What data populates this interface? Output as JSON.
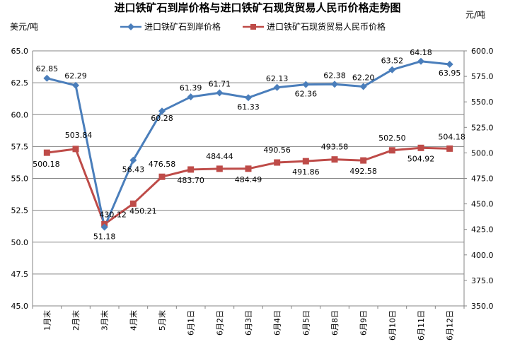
{
  "chart_data": {
    "type": "line",
    "title": "进口铁矿石到岸价格与进口铁矿石现货贸易人民币价格走势图",
    "ylabel_left": "美元/吨",
    "ylabel_right": "元/吨",
    "categories": [
      "1月末",
      "2月末",
      "3月末",
      "4月末",
      "5月末",
      "6月1日",
      "6月2日",
      "6月3日",
      "6月4日",
      "6月5日",
      "6月8日",
      "6月9日",
      "6月10日",
      "6月11日",
      "6月12日"
    ],
    "ylim_left": [
      45,
      65
    ],
    "yticks_left": [
      "45.0",
      "47.5",
      "50.0",
      "52.5",
      "55.0",
      "57.5",
      "60.0",
      "62.5",
      "65.0"
    ],
    "ylim_right": [
      350,
      600
    ],
    "yticks_right": [
      "350.0",
      "375.0",
      "400.0",
      "425.0",
      "450.0",
      "475.0",
      "500.0",
      "525.0",
      "550.0",
      "575.0",
      "600.0"
    ],
    "legend_position": "top",
    "series": [
      {
        "name": "进口铁矿石到岸价格",
        "axis": "left",
        "color": "#4a7ebb",
        "marker": "diamond",
        "values": [
          62.85,
          62.29,
          51.18,
          56.43,
          60.28,
          61.39,
          61.71,
          61.33,
          62.13,
          62.36,
          62.38,
          62.2,
          63.52,
          64.18,
          63.95
        ],
        "labels": [
          "62.85",
          "62.29",
          "51.18",
          "56.43",
          "60.28",
          "61.39",
          "61.71",
          "61.33",
          "62.13",
          "62.36",
          "62.38",
          "62.20",
          "63.52",
          "64.18",
          "63.95"
        ]
      },
      {
        "name": "进口铁矿石现货贸易人民币价格",
        "axis": "right",
        "color": "#be4b48",
        "marker": "square",
        "values": [
          500.18,
          503.84,
          430.12,
          450.21,
          476.58,
          483.7,
          484.44,
          484.49,
          490.56,
          491.86,
          493.58,
          492.58,
          502.5,
          504.92,
          504.18
        ],
        "labels": [
          "500.18",
          "503.84",
          "430.12",
          "450.21",
          "476.58",
          "483.70",
          "484.44",
          "484.49",
          "490.56",
          "491.86",
          "493.58",
          "492.58",
          "502.50",
          "504.92",
          "504.18"
        ]
      }
    ]
  }
}
